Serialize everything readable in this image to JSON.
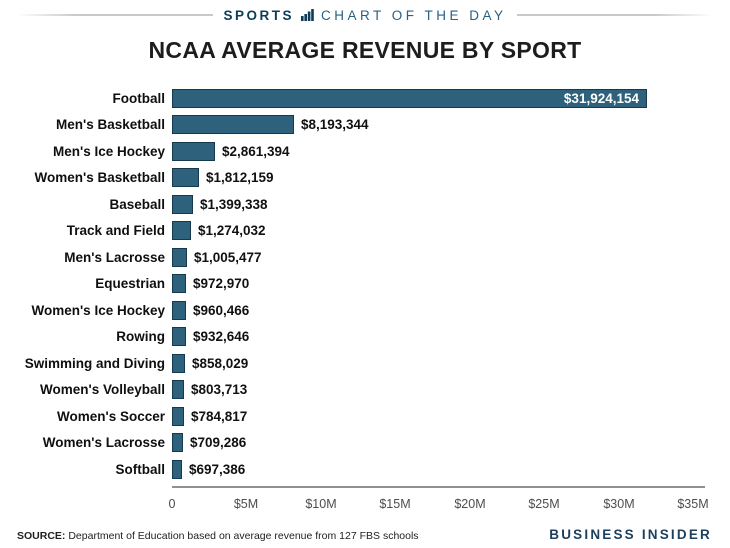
{
  "header": {
    "kicker_bold": "SPORTS",
    "kicker_rest": "CHART OF THE DAY",
    "title": "NCAA AVERAGE REVENUE BY SPORT"
  },
  "chart_data": {
    "type": "bar",
    "orientation": "horizontal",
    "title": "NCAA AVERAGE REVENUE BY SPORT",
    "categories": [
      "Football",
      "Men's Basketball",
      "Men's Ice Hockey",
      "Women's Basketball",
      "Baseball",
      "Track and Field",
      "Men's Lacrosse",
      "Equestrian",
      "Women's Ice Hockey",
      "Rowing",
      "Swimming and Diving",
      "Women's Volleyball",
      "Women's Soccer",
      "Women's Lacrosse",
      "Softball"
    ],
    "values": [
      31924154,
      8193344,
      2861394,
      1812159,
      1399338,
      1274032,
      1005477,
      972970,
      960466,
      932646,
      858029,
      803713,
      784817,
      709286,
      697386
    ],
    "value_labels": [
      "$31,924,154",
      "$8,193,344",
      "$2,861,394",
      "$1,812,159",
      "$1,399,338",
      "$1,274,032",
      "$1,005,477",
      "$972,970",
      "$960,466",
      "$932,646",
      "$858,029",
      "$803,713",
      "$784,817",
      "$709,286",
      "$697,386"
    ],
    "value_label_placement": [
      "inside",
      "outside",
      "outside",
      "outside",
      "outside",
      "outside",
      "outside",
      "outside",
      "outside",
      "outside",
      "outside",
      "outside",
      "outside",
      "outside",
      "outside"
    ],
    "xlabel": "",
    "ylabel": "",
    "xlim": [
      0,
      35000000
    ],
    "x_ticks": {
      "labels": [
        "0",
        "$5M",
        "$10M",
        "$15M",
        "$20M",
        "$25M",
        "$30M",
        "$35M"
      ],
      "values": [
        0,
        5000000,
        10000000,
        15000000,
        20000000,
        25000000,
        30000000,
        35000000
      ]
    },
    "grid": false,
    "legend": "none",
    "colors": {
      "bar_fill": "#2E617C",
      "bar_border": "#16394E",
      "axis_line": "#909090",
      "tick_text": "#4D4D4D",
      "value_inside_text": "#FFFFFF",
      "value_outside_text": "#111111"
    }
  },
  "footer": {
    "source_label": "SOURCE:",
    "source_text": "Department of Education based on average revenue from 127 FBS schools",
    "brand": "BUSINESS INSIDER"
  }
}
